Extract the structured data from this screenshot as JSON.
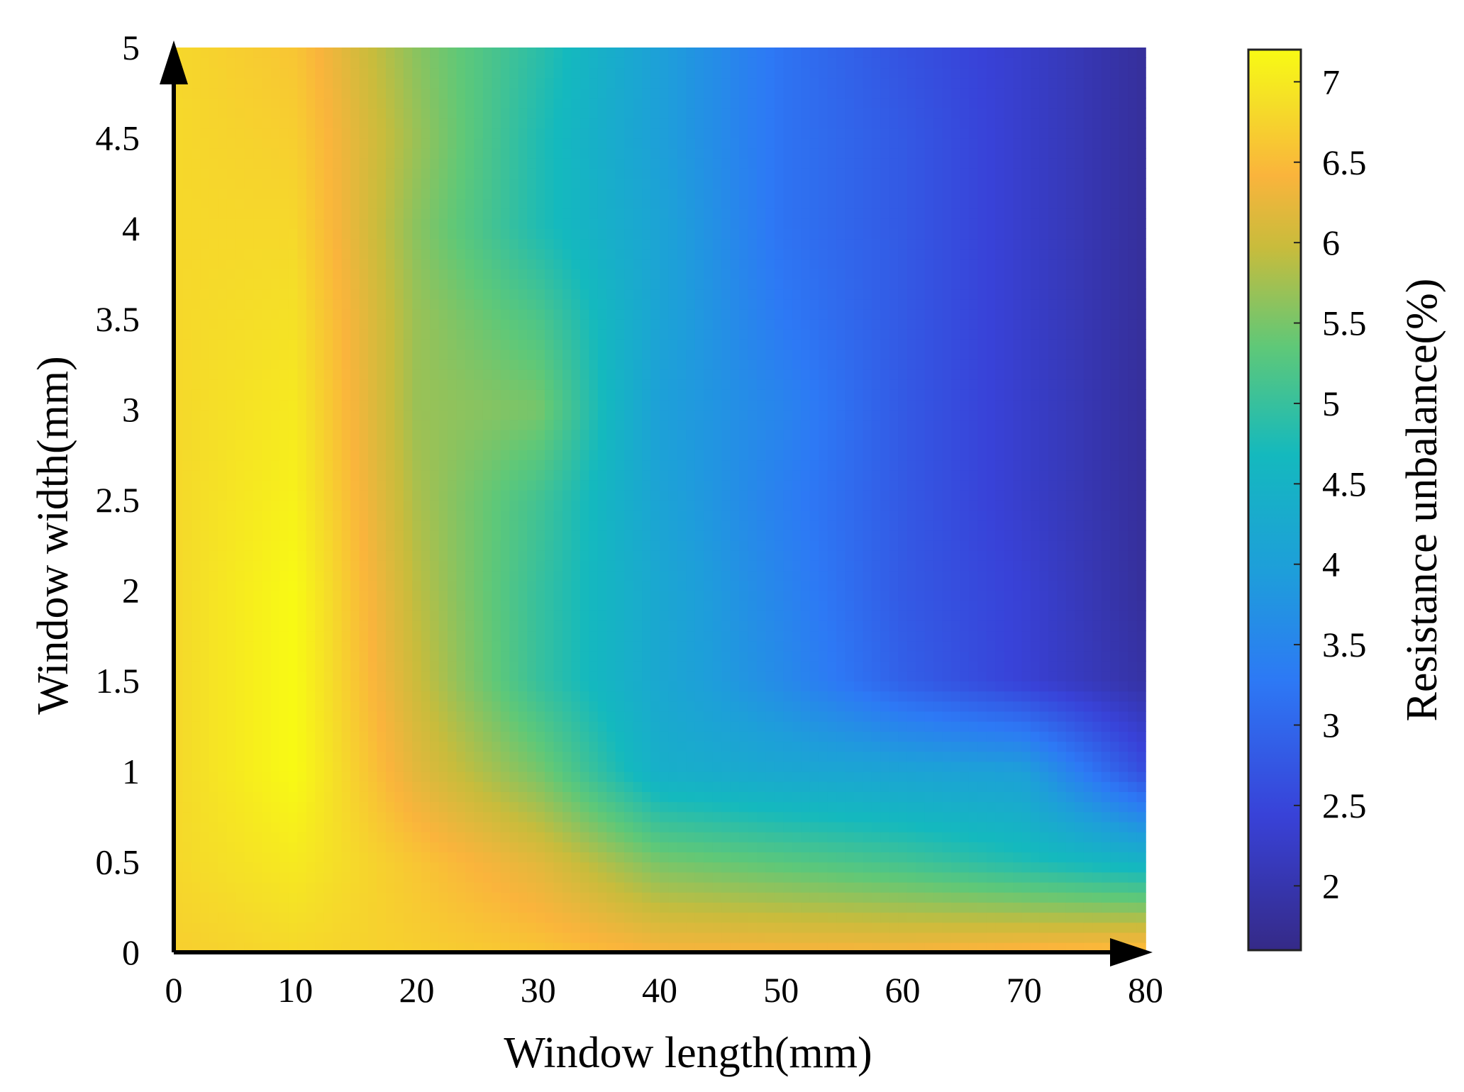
{
  "chart_data": {
    "type": "heatmap",
    "xlabel": "Window length(mm)",
    "ylabel": "Window width(mm)",
    "colorbar_label": "Resistance unbalance(%)",
    "x_ticks": [
      "0",
      "10",
      "20",
      "30",
      "40",
      "50",
      "60",
      "70",
      "80"
    ],
    "y_ticks": [
      "0",
      "0.5",
      "1",
      "1.5",
      "2",
      "2.5",
      "3",
      "3.5",
      "4",
      "4.5",
      "5"
    ],
    "colorbar_ticks": [
      "2",
      "2.5",
      "3",
      "3.5",
      "4",
      "4.5",
      "5",
      "5.5",
      "6",
      "6.5",
      "7"
    ],
    "xlim": [
      0,
      80
    ],
    "ylim": [
      0,
      5
    ],
    "clim": [
      1.6,
      7.2
    ],
    "colormap": "parula",
    "x": [
      0,
      10,
      20,
      30,
      40,
      50,
      60,
      70,
      80
    ],
    "y": [
      0,
      0.5,
      1,
      1.5,
      2,
      2.5,
      3,
      3.5,
      4,
      4.5,
      5
    ],
    "z": [
      [
        6.7,
        6.8,
        6.7,
        6.6,
        6.4,
        6.4,
        6.4,
        6.5,
        6.6
      ],
      [
        6.8,
        7.0,
        6.6,
        6.2,
        5.5,
        5.3,
        5.1,
        4.8,
        4.5
      ],
      [
        6.8,
        7.2,
        6.2,
        5.5,
        4.4,
        4.2,
        4.1,
        4.0,
        2.6
      ],
      [
        6.8,
        7.2,
        6.0,
        5.0,
        4.2,
        3.6,
        2.9,
        2.4,
        1.9
      ],
      [
        6.8,
        7.2,
        5.9,
        5.0,
        4.2,
        3.5,
        2.8,
        2.4,
        1.8
      ],
      [
        6.8,
        7.1,
        5.8,
        5.1,
        4.1,
        3.4,
        2.8,
        2.3,
        1.8
      ],
      [
        6.8,
        7.0,
        5.7,
        5.5,
        4.0,
        3.5,
        2.8,
        2.3,
        1.8
      ],
      [
        6.8,
        6.9,
        5.7,
        5.2,
        4.1,
        3.3,
        2.8,
        2.3,
        1.8
      ],
      [
        6.8,
        6.8,
        5.6,
        4.8,
        4.1,
        3.2,
        2.8,
        2.3,
        1.8
      ],
      [
        6.8,
        6.7,
        5.7,
        4.8,
        4.0,
        3.2,
        2.8,
        2.3,
        1.8
      ],
      [
        6.8,
        6.6,
        5.6,
        4.9,
        4.0,
        3.2,
        2.7,
        2.3,
        1.8
      ]
    ]
  }
}
